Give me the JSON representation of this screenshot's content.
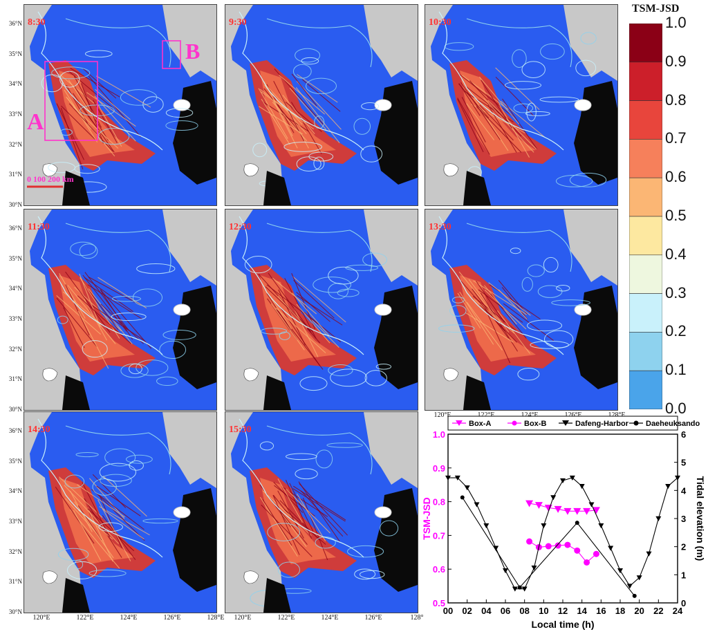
{
  "panels": [
    {
      "time": "8:30"
    },
    {
      "time": "9:30"
    },
    {
      "time": "10:30"
    },
    {
      "time": "11:30"
    },
    {
      "time": "12:30"
    },
    {
      "time": "13:30"
    },
    {
      "time": "14:30"
    },
    {
      "time": "15:30"
    }
  ],
  "map_axes": {
    "lat_ticks": [
      "36°N",
      "35°N",
      "34°N",
      "33°N",
      "32°N",
      "31°N",
      "30°N"
    ],
    "lon_ticks": [
      "120°E",
      "122°E",
      "124°E",
      "126°E",
      "128°E"
    ],
    "lon_ticks_clipped": [
      "120°E",
      "122°E",
      "124°E",
      "126°E",
      "128°"
    ]
  },
  "annotations": {
    "box_a": "A",
    "box_b": "B",
    "scalebar": "0  100  200 km"
  },
  "colorbar": {
    "title": "TSM-JSD",
    "ticks": [
      "1.0",
      "0.9",
      "0.8",
      "0.7",
      "0.6",
      "0.5",
      "0.4",
      "0.3",
      "0.2",
      "0.1",
      "0.0"
    ],
    "colors": [
      "#8b0016",
      "#cc1f2a",
      "#e8453c",
      "#f6805b",
      "#fbb674",
      "#fde8a0",
      "#eef7df",
      "#c9f1fb",
      "#8ed2ee",
      "#4aa4ea",
      "#2a5cf0"
    ]
  },
  "colors": {
    "box": "#ff33cc",
    "label": "#ff3030",
    "sea": "#2a5cf0",
    "land": "#c8c8c8",
    "magenta": "#ff00ff"
  },
  "chart_data": {
    "type": "line",
    "xlabel": "Local time (h)",
    "ylabel_left": "TSM-JSD",
    "ylabel_right": "Tidal elevation (m)",
    "xlim": [
      0,
      24
    ],
    "ylim_left": [
      0.5,
      1.0
    ],
    "ylim_right": [
      0,
      6
    ],
    "x_ticks": [
      "00",
      "02",
      "04",
      "06",
      "08",
      "10",
      "12",
      "14",
      "16",
      "18",
      "20",
      "22",
      "24"
    ],
    "y_left_ticks": [
      "0.5",
      "0.6",
      "0.7",
      "0.8",
      "0.9",
      "1.0"
    ],
    "y_right_ticks": [
      "0",
      "1",
      "2",
      "3",
      "4",
      "5",
      "6"
    ],
    "series": [
      {
        "name": "Box-A",
        "axis": "left",
        "marker": "triangle-down",
        "color": "#ff00ff",
        "x": [
          8.5,
          9.5,
          10.5,
          11.5,
          12.5,
          13.5,
          14.5,
          15.5
        ],
        "y": [
          0.795,
          0.79,
          0.782,
          0.778,
          0.772,
          0.772,
          0.772,
          0.775
        ]
      },
      {
        "name": "Box-B",
        "axis": "left",
        "marker": "circle",
        "color": "#ff00ff",
        "x": [
          8.5,
          9.5,
          10.5,
          11.5,
          12.5,
          13.5,
          14.5,
          15.5
        ],
        "y": [
          0.682,
          0.665,
          0.668,
          0.67,
          0.672,
          0.655,
          0.62,
          0.645
        ]
      },
      {
        "name": "Dafeng-Harbor",
        "axis": "right",
        "marker": "triangle-down",
        "color": "#000000",
        "x": [
          0,
          1,
          2,
          3,
          4,
          5,
          6,
          7,
          8,
          9,
          10,
          11,
          12,
          13,
          14,
          15,
          16,
          17,
          18,
          19,
          20,
          21,
          22,
          23,
          24
        ],
        "y": [
          4.45,
          4.45,
          4.1,
          3.5,
          2.75,
          1.95,
          1.15,
          0.5,
          0.5,
          1.25,
          2.75,
          3.75,
          4.35,
          4.45,
          4.15,
          3.5,
          2.75,
          1.95,
          1.15,
          0.6,
          0.9,
          1.75,
          3.0,
          4.15,
          4.45
        ]
      },
      {
        "name": "Daeheuksando",
        "axis": "right",
        "marker": "circle",
        "color": "#000000",
        "x": [
          1.5,
          7.5,
          13.5,
          19.5
        ],
        "y": [
          3.75,
          0.55,
          2.85,
          0.25
        ]
      }
    ]
  }
}
